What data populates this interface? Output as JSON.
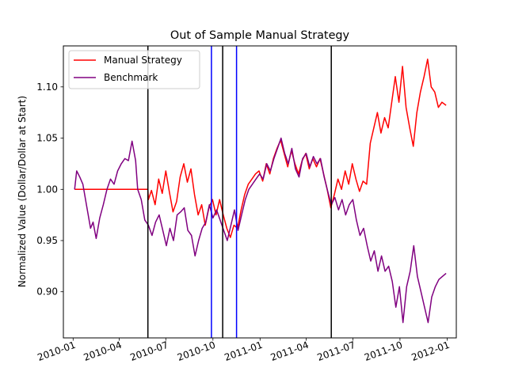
{
  "chart_data": {
    "type": "line",
    "title": "Out of Sample Manual Strategy",
    "xlabel": "",
    "ylabel": "Normalized Value (Dollar/Dollar at Start)",
    "xlim": [
      "2009-12-13",
      "2012-01-19"
    ],
    "ylim": [
      0.855,
      1.14
    ],
    "x_ticks": [
      {
        "date": "2010-01-01",
        "label": "2010-01"
      },
      {
        "date": "2010-04-01",
        "label": "2010-04"
      },
      {
        "date": "2010-07-01",
        "label": "2010-07"
      },
      {
        "date": "2010-10-01",
        "label": "2010-10"
      },
      {
        "date": "2011-01-01",
        "label": "2011-01"
      },
      {
        "date": "2011-04-01",
        "label": "2011-04"
      },
      {
        "date": "2011-07-01",
        "label": "2011-07"
      },
      {
        "date": "2011-10-01",
        "label": "2011-10"
      },
      {
        "date": "2012-01-01",
        "label": "2012-01"
      }
    ],
    "y_ticks": [
      {
        "value": 0.9,
        "label": "0.90"
      },
      {
        "value": 0.95,
        "label": "0.95"
      },
      {
        "value": 1.0,
        "label": "1.00"
      },
      {
        "value": 1.05,
        "label": "1.05"
      },
      {
        "value": 1.1,
        "label": "1.10"
      }
    ],
    "grid": false,
    "legend_position": "top-left",
    "series": [
      {
        "name": "Manual Strategy",
        "color": "#ff0000",
        "points": [
          [
            "2010-01-04",
            1.0
          ],
          [
            "2010-02-01",
            1.0
          ],
          [
            "2010-03-01",
            1.0
          ],
          [
            "2010-04-01",
            1.0
          ],
          [
            "2010-05-01",
            1.0
          ],
          [
            "2010-05-27",
            1.0
          ],
          [
            "2010-05-28",
            0.99
          ],
          [
            "2010-06-03",
            0.999
          ],
          [
            "2010-06-10",
            0.985
          ],
          [
            "2010-06-17",
            1.01
          ],
          [
            "2010-06-24",
            0.996
          ],
          [
            "2010-07-01",
            1.018
          ],
          [
            "2010-07-08",
            0.997
          ],
          [
            "2010-07-15",
            0.978
          ],
          [
            "2010-07-22",
            0.988
          ],
          [
            "2010-07-29",
            1.012
          ],
          [
            "2010-08-05",
            1.025
          ],
          [
            "2010-08-12",
            1.007
          ],
          [
            "2010-08-19",
            1.02
          ],
          [
            "2010-08-26",
            0.995
          ],
          [
            "2010-09-02",
            0.975
          ],
          [
            "2010-09-09",
            0.985
          ],
          [
            "2010-09-16",
            0.965
          ],
          [
            "2010-09-23",
            0.982
          ],
          [
            "2010-09-30",
            0.99
          ],
          [
            "2010-10-07",
            0.975
          ],
          [
            "2010-10-14",
            0.99
          ],
          [
            "2010-10-21",
            0.975
          ],
          [
            "2010-10-28",
            0.962
          ],
          [
            "2010-11-04",
            0.953
          ],
          [
            "2010-11-11",
            0.965
          ],
          [
            "2010-11-18",
            0.962
          ],
          [
            "2010-11-25",
            0.98
          ],
          [
            "2010-12-02",
            0.995
          ],
          [
            "2010-12-09",
            1.005
          ],
          [
            "2010-12-16",
            1.01
          ],
          [
            "2010-12-23",
            1.015
          ],
          [
            "2010-12-30",
            1.018
          ],
          [
            "2011-01-06",
            1.008
          ],
          [
            "2011-01-13",
            1.025
          ],
          [
            "2011-01-20",
            1.015
          ],
          [
            "2011-01-27",
            1.03
          ],
          [
            "2011-02-03",
            1.04
          ],
          [
            "2011-02-10",
            1.048
          ],
          [
            "2011-02-17",
            1.035
          ],
          [
            "2011-02-24",
            1.022
          ],
          [
            "2011-03-03",
            1.038
          ],
          [
            "2011-03-10",
            1.025
          ],
          [
            "2011-03-17",
            1.015
          ],
          [
            "2011-03-24",
            1.028
          ],
          [
            "2011-03-31",
            1.035
          ],
          [
            "2011-04-07",
            1.02
          ],
          [
            "2011-04-14",
            1.03
          ],
          [
            "2011-04-21",
            1.022
          ],
          [
            "2011-04-28",
            1.03
          ],
          [
            "2011-05-05",
            1.015
          ],
          [
            "2011-05-12",
            1.0
          ],
          [
            "2011-05-19",
            0.982
          ],
          [
            "2011-05-26",
            0.995
          ],
          [
            "2011-06-02",
            1.01
          ],
          [
            "2011-06-09",
            1.0
          ],
          [
            "2011-06-16",
            1.018
          ],
          [
            "2011-06-23",
            1.005
          ],
          [
            "2011-06-30",
            1.025
          ],
          [
            "2011-07-07",
            1.01
          ],
          [
            "2011-07-14",
            0.998
          ],
          [
            "2011-07-21",
            1.008
          ],
          [
            "2011-07-28",
            1.005
          ],
          [
            "2011-08-04",
            1.045
          ],
          [
            "2011-08-11",
            1.06
          ],
          [
            "2011-08-18",
            1.075
          ],
          [
            "2011-08-25",
            1.055
          ],
          [
            "2011-09-01",
            1.07
          ],
          [
            "2011-09-08",
            1.06
          ],
          [
            "2011-09-15",
            1.085
          ],
          [
            "2011-09-22",
            1.11
          ],
          [
            "2011-09-29",
            1.085
          ],
          [
            "2011-10-06",
            1.12
          ],
          [
            "2011-10-13",
            1.08
          ],
          [
            "2011-10-20",
            1.06
          ],
          [
            "2011-10-27",
            1.042
          ],
          [
            "2011-11-03",
            1.075
          ],
          [
            "2011-11-10",
            1.095
          ],
          [
            "2011-11-17",
            1.11
          ],
          [
            "2011-11-24",
            1.127
          ],
          [
            "2011-12-01",
            1.1
          ],
          [
            "2011-12-08",
            1.095
          ],
          [
            "2011-12-15",
            1.08
          ],
          [
            "2011-12-22",
            1.085
          ],
          [
            "2011-12-30",
            1.082
          ]
        ]
      },
      {
        "name": "Benchmark",
        "color": "#800080",
        "points": [
          [
            "2010-01-04",
            1.0
          ],
          [
            "2010-01-08",
            1.018
          ],
          [
            "2010-01-14",
            1.012
          ],
          [
            "2010-01-20",
            1.005
          ],
          [
            "2010-01-27",
            0.985
          ],
          [
            "2010-02-04",
            0.962
          ],
          [
            "2010-02-09",
            0.968
          ],
          [
            "2010-02-15",
            0.952
          ],
          [
            "2010-02-22",
            0.972
          ],
          [
            "2010-03-01",
            0.985
          ],
          [
            "2010-03-08",
            1.0
          ],
          [
            "2010-03-15",
            1.01
          ],
          [
            "2010-03-22",
            1.005
          ],
          [
            "2010-03-29",
            1.018
          ],
          [
            "2010-04-05",
            1.025
          ],
          [
            "2010-04-12",
            1.03
          ],
          [
            "2010-04-19",
            1.028
          ],
          [
            "2010-04-26",
            1.047
          ],
          [
            "2010-05-03",
            1.028
          ],
          [
            "2010-05-07",
            1.0
          ],
          [
            "2010-05-14",
            0.99
          ],
          [
            "2010-05-21",
            0.97
          ],
          [
            "2010-05-28",
            0.965
          ],
          [
            "2010-06-04",
            0.955
          ],
          [
            "2010-06-11",
            0.968
          ],
          [
            "2010-06-18",
            0.975
          ],
          [
            "2010-06-25",
            0.96
          ],
          [
            "2010-07-02",
            0.945
          ],
          [
            "2010-07-09",
            0.962
          ],
          [
            "2010-07-16",
            0.95
          ],
          [
            "2010-07-23",
            0.975
          ],
          [
            "2010-07-30",
            0.978
          ],
          [
            "2010-08-06",
            0.982
          ],
          [
            "2010-08-13",
            0.96
          ],
          [
            "2010-08-20",
            0.955
          ],
          [
            "2010-08-27",
            0.935
          ],
          [
            "2010-09-03",
            0.95
          ],
          [
            "2010-09-10",
            0.962
          ],
          [
            "2010-09-17",
            0.968
          ],
          [
            "2010-09-24",
            0.985
          ],
          [
            "2010-10-01",
            0.972
          ],
          [
            "2010-10-08",
            0.98
          ],
          [
            "2010-10-15",
            0.97
          ],
          [
            "2010-10-22",
            0.96
          ],
          [
            "2010-10-29",
            0.95
          ],
          [
            "2010-11-05",
            0.965
          ],
          [
            "2010-11-12",
            0.98
          ],
          [
            "2010-11-19",
            0.96
          ],
          [
            "2010-11-26",
            0.975
          ],
          [
            "2010-12-03",
            0.99
          ],
          [
            "2010-12-10",
            1.0
          ],
          [
            "2010-12-17",
            1.005
          ],
          [
            "2010-12-24",
            1.01
          ],
          [
            "2010-12-31",
            1.015
          ],
          [
            "2011-01-07",
            1.01
          ],
          [
            "2011-01-14",
            1.025
          ],
          [
            "2011-01-21",
            1.018
          ],
          [
            "2011-01-28",
            1.03
          ],
          [
            "2011-02-04",
            1.04
          ],
          [
            "2011-02-11",
            1.05
          ],
          [
            "2011-02-18",
            1.035
          ],
          [
            "2011-02-25",
            1.025
          ],
          [
            "2011-03-04",
            1.04
          ],
          [
            "2011-03-11",
            1.02
          ],
          [
            "2011-03-18",
            1.012
          ],
          [
            "2011-03-25",
            1.03
          ],
          [
            "2011-04-01",
            1.035
          ],
          [
            "2011-04-08",
            1.022
          ],
          [
            "2011-04-15",
            1.032
          ],
          [
            "2011-04-22",
            1.025
          ],
          [
            "2011-04-29",
            1.03
          ],
          [
            "2011-05-06",
            1.012
          ],
          [
            "2011-05-13",
            0.998
          ],
          [
            "2011-05-20",
            0.985
          ],
          [
            "2011-05-27",
            0.992
          ],
          [
            "2011-06-03",
            0.98
          ],
          [
            "2011-06-10",
            0.99
          ],
          [
            "2011-06-17",
            0.975
          ],
          [
            "2011-06-24",
            0.985
          ],
          [
            "2011-07-01",
            0.99
          ],
          [
            "2011-07-08",
            0.97
          ],
          [
            "2011-07-15",
            0.955
          ],
          [
            "2011-07-22",
            0.962
          ],
          [
            "2011-07-29",
            0.945
          ],
          [
            "2011-08-05",
            0.93
          ],
          [
            "2011-08-12",
            0.94
          ],
          [
            "2011-08-19",
            0.92
          ],
          [
            "2011-08-26",
            0.935
          ],
          [
            "2011-09-02",
            0.92
          ],
          [
            "2011-09-09",
            0.925
          ],
          [
            "2011-09-16",
            0.91
          ],
          [
            "2011-09-23",
            0.885
          ],
          [
            "2011-09-30",
            0.905
          ],
          [
            "2011-10-07",
            0.87
          ],
          [
            "2011-10-14",
            0.905
          ],
          [
            "2011-10-21",
            0.92
          ],
          [
            "2011-10-28",
            0.945
          ],
          [
            "2011-11-04",
            0.915
          ],
          [
            "2011-11-11",
            0.9
          ],
          [
            "2011-11-18",
            0.885
          ],
          [
            "2011-11-25",
            0.87
          ],
          [
            "2011-12-02",
            0.895
          ],
          [
            "2011-12-09",
            0.905
          ],
          [
            "2011-12-16",
            0.912
          ],
          [
            "2011-12-23",
            0.915
          ],
          [
            "2011-12-30",
            0.918
          ]
        ]
      }
    ],
    "vertical_lines": [
      {
        "date": "2010-05-27",
        "color": "#000000"
      },
      {
        "date": "2010-09-28",
        "color": "#0000ff"
      },
      {
        "date": "2010-10-20",
        "color": "#000000"
      },
      {
        "date": "2010-11-16",
        "color": "#0000ff"
      },
      {
        "date": "2011-05-20",
        "color": "#000000"
      }
    ]
  }
}
